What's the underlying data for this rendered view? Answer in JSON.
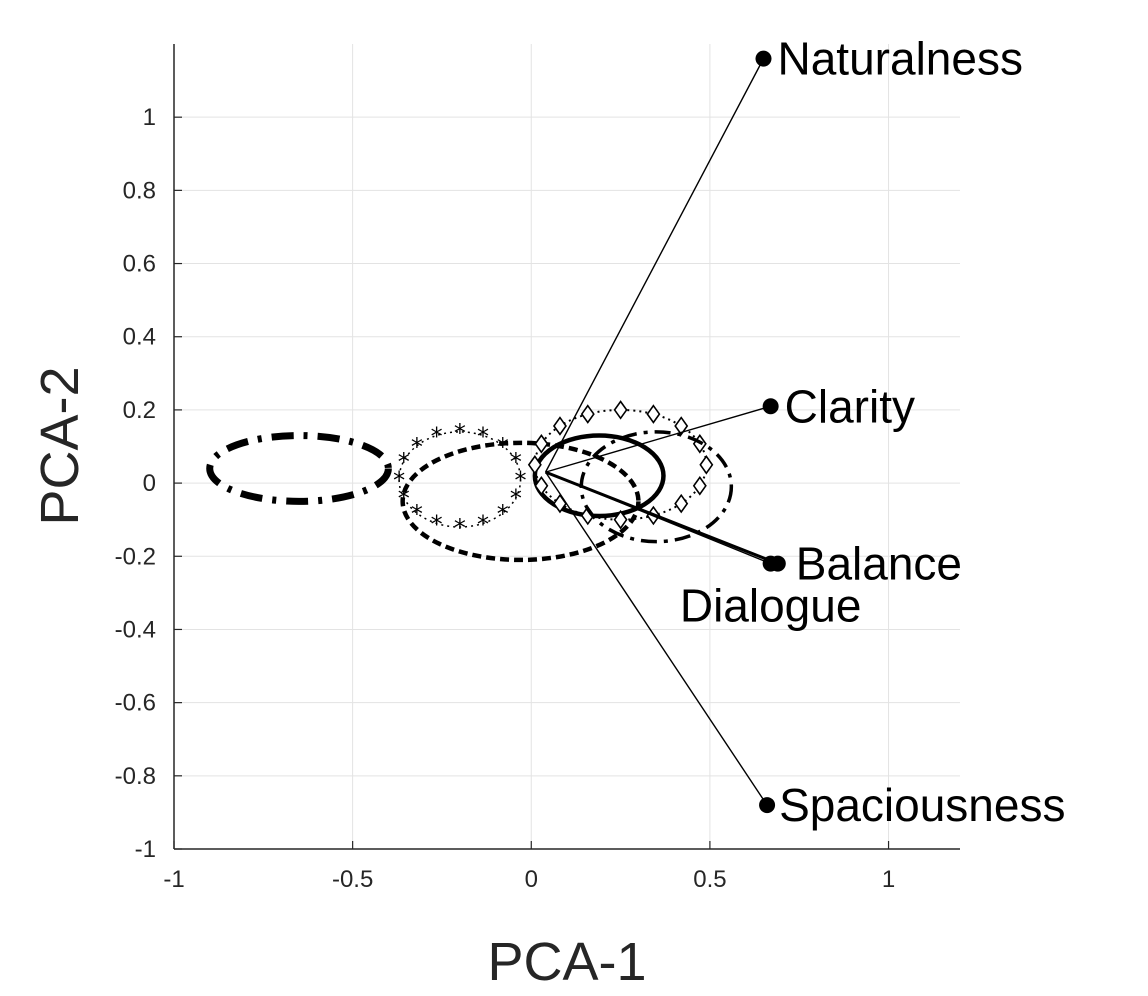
{
  "chart_data": {
    "type": "scatter",
    "xlabel": "PCA-1",
    "ylabel": "PCA-2",
    "xlim": [
      -1,
      1.2
    ],
    "ylim": [
      -1,
      1.2
    ],
    "grid": true,
    "x_ticks": [
      {
        "value": -1,
        "label": "-1"
      },
      {
        "value": -0.5,
        "label": "-0.5"
      },
      {
        "value": 0,
        "label": "0"
      },
      {
        "value": 0.5,
        "label": "0.5"
      },
      {
        "value": 1,
        "label": "1"
      }
    ],
    "y_ticks": [
      {
        "value": 1,
        "label": "1"
      },
      {
        "value": 0.8,
        "label": "0.8"
      },
      {
        "value": 0.6,
        "label": "0.6"
      },
      {
        "value": 0.4,
        "label": "0.4"
      },
      {
        "value": 0.2,
        "label": "0.2"
      },
      {
        "value": 0,
        "label": "0"
      },
      {
        "value": -0.2,
        "label": "-0.2"
      },
      {
        "value": -0.4,
        "label": "-0.4"
      },
      {
        "value": -0.6,
        "label": "-0.6"
      },
      {
        "value": -0.8,
        "label": "-0.8"
      },
      {
        "value": -1,
        "label": "-1"
      }
    ],
    "vectors": [
      {
        "label": "Naturalness",
        "from": [
          0.04,
          0.03
        ],
        "to": [
          0.65,
          1.16
        ]
      },
      {
        "label": "Clarity",
        "from": [
          0.04,
          0.03
        ],
        "to": [
          0.67,
          0.21
        ]
      },
      {
        "label": "Balance",
        "from": [
          0.04,
          0.03
        ],
        "to": [
          0.69,
          -0.22
        ]
      },
      {
        "label": "Dialogue",
        "from": [
          0.04,
          0.03
        ],
        "to": [
          0.67,
          -0.22
        ]
      },
      {
        "label": "Spaciousness",
        "from": [
          0.04,
          0.03
        ],
        "to": [
          0.66,
          -0.88
        ]
      }
    ],
    "ellipses": [
      {
        "cx": -0.65,
        "cy": 0.04,
        "rx": 0.25,
        "ry": 0.09,
        "line_style": "dash-dot-bold"
      },
      {
        "cx": -0.2,
        "cy": 0.01,
        "rx": 0.17,
        "ry": 0.13,
        "line_style": "dotted-asterisk"
      },
      {
        "cx": -0.03,
        "cy": -0.05,
        "rx": 0.33,
        "ry": 0.16,
        "line_style": "dashed"
      },
      {
        "cx": 0.19,
        "cy": 0.02,
        "rx": 0.18,
        "ry": 0.11,
        "line_style": "solid-bold"
      },
      {
        "cx": 0.25,
        "cy": 0.05,
        "rx": 0.24,
        "ry": 0.15,
        "line_style": "dotted-diamond"
      },
      {
        "cx": 0.35,
        "cy": -0.01,
        "rx": 0.21,
        "ry": 0.15,
        "line_style": "dash-dot"
      }
    ]
  }
}
